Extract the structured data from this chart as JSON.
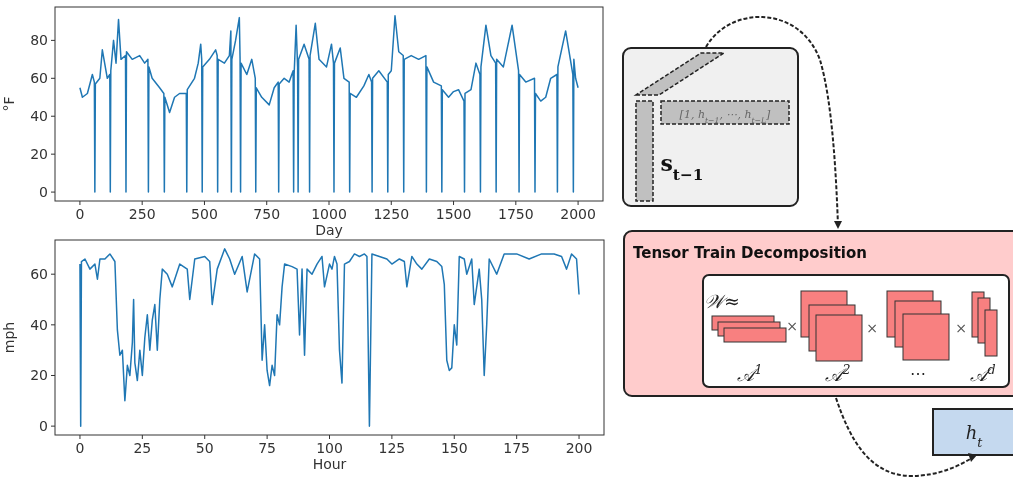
{
  "chart_data": [
    {
      "type": "line",
      "xlabel": "Day",
      "ylabel": "°F",
      "color": "#1f77b4",
      "xlim": [
        -100,
        2100
      ],
      "ylim": [
        -4.7,
        97.6
      ],
      "xticks": [
        0,
        250,
        500,
        750,
        1000,
        1250,
        1500,
        1750,
        2000
      ],
      "yticks": [
        0,
        20,
        40,
        60,
        80
      ],
      "x": [
        0,
        10,
        30,
        50,
        58,
        60,
        62,
        80,
        90,
        110,
        120,
        122,
        124,
        135,
        145,
        155,
        165,
        183,
        185,
        187,
        210,
        240,
        260,
        273,
        275,
        277,
        290,
        320,
        337,
        339,
        341,
        360,
        380,
        400,
        427,
        429,
        431,
        460,
        475,
        485,
        489,
        491,
        493,
        520,
        545,
        551,
        553,
        555,
        580,
        600,
        606,
        608,
        610,
        625,
        640,
        643,
        645,
        647,
        670,
        690,
        704,
        706,
        708,
        730,
        760,
        780,
        796,
        798,
        800,
        820,
        840,
        856,
        858,
        860,
        868,
        874,
        876,
        878,
        900,
        920,
        922,
        924,
        945,
        960,
        990,
        1010,
        1018,
        1020,
        1022,
        1045,
        1060,
        1081,
        1083,
        1085,
        1110,
        1140,
        1160,
        1171,
        1173,
        1175,
        1200,
        1234,
        1236,
        1238,
        1250,
        1265,
        1280,
        1298,
        1300,
        1302,
        1330,
        1360,
        1389,
        1391,
        1393,
        1420,
        1451,
        1453,
        1455,
        1480,
        1500,
        1520,
        1542,
        1544,
        1546,
        1570,
        1590,
        1606,
        1608,
        1610,
        1630,
        1650,
        1669,
        1671,
        1673,
        1700,
        1735,
        1761,
        1763,
        1765,
        1790,
        1825,
        1827,
        1829,
        1850,
        1870,
        1890,
        1915,
        1917,
        1919,
        1950,
        1979,
        1981,
        1983,
        1990,
        2000
      ],
      "values": [
        55,
        50,
        52,
        62,
        58,
        0,
        57,
        60,
        75,
        60,
        62,
        0,
        64,
        80,
        68,
        91,
        70,
        72,
        0,
        74,
        70,
        72,
        68,
        70,
        0,
        66,
        60,
        55,
        52,
        0,
        50,
        42,
        50,
        52,
        52,
        0,
        54,
        60,
        68,
        78,
        70,
        0,
        66,
        70,
        75,
        72,
        0,
        70,
        68,
        72,
        85,
        0,
        70,
        80,
        92,
        70,
        0,
        68,
        62,
        70,
        60,
        0,
        55,
        50,
        46,
        55,
        58,
        0,
        57,
        60,
        58,
        64,
        0,
        62,
        88,
        66,
        0,
        70,
        78,
        70,
        0,
        72,
        89,
        70,
        66,
        78,
        68,
        0,
        68,
        76,
        60,
        58,
        0,
        52,
        50,
        56,
        62,
        58,
        0,
        60,
        64,
        58,
        0,
        62,
        64,
        93,
        74,
        72,
        0,
        70,
        72,
        70,
        72,
        0,
        66,
        58,
        56,
        0,
        54,
        50,
        53,
        54,
        48,
        0,
        52,
        54,
        68,
        62,
        0,
        66,
        88,
        72,
        68,
        0,
        70,
        66,
        88,
        64,
        0,
        62,
        58,
        60,
        0,
        52,
        48,
        50,
        60,
        62,
        0,
        66,
        85,
        62,
        0,
        70,
        60,
        55
      ]
    },
    {
      "type": "line",
      "xlabel": "Hour",
      "ylabel": "mph",
      "color": "#1f77b4",
      "xlim": [
        -10,
        210
      ],
      "ylim": [
        -3.5,
        73.5
      ],
      "xticks": [
        0,
        25,
        50,
        75,
        100,
        125,
        150,
        175,
        200
      ],
      "yticks": [
        0,
        20,
        40,
        60
      ],
      "x": [
        0,
        0.3,
        0.6,
        2,
        4,
        6,
        7,
        8,
        10,
        12,
        14,
        15,
        16,
        17,
        18,
        19,
        20,
        21,
        21.5,
        22,
        23,
        24,
        25,
        26,
        27,
        28,
        29,
        30,
        31,
        32,
        33,
        35,
        37,
        40,
        43,
        44,
        46,
        50,
        52,
        53,
        55,
        58,
        60,
        62,
        65,
        67,
        70,
        72,
        73,
        74,
        75,
        76,
        77,
        78,
        79,
        80,
        81,
        82,
        85,
        87,
        88,
        89,
        90,
        91,
        93,
        95,
        97,
        98,
        100,
        101,
        102,
        103,
        104,
        105,
        106,
        108,
        110,
        112,
        114,
        115,
        116,
        117,
        120,
        123,
        125,
        128,
        130,
        131,
        133,
        135,
        137,
        140,
        143,
        145,
        146,
        147,
        148,
        149,
        150,
        151,
        152,
        154,
        155,
        157,
        158,
        160,
        161,
        162,
        163,
        164,
        167,
        170,
        175,
        180,
        185,
        190,
        193,
        195,
        197,
        199,
        200
      ],
      "values": [
        64,
        0,
        65,
        66,
        62,
        64,
        58,
        66,
        66,
        68,
        65,
        38,
        28,
        30,
        10,
        24,
        20,
        33,
        50,
        25,
        18,
        30,
        20,
        35,
        44,
        30,
        42,
        48,
        30,
        50,
        62,
        60,
        55,
        64,
        62,
        50,
        66,
        67,
        65,
        48,
        62,
        70,
        66,
        60,
        67,
        53,
        68,
        66,
        26,
        40,
        22,
        16,
        24,
        20,
        44,
        40,
        55,
        64,
        63,
        62,
        36,
        62,
        28,
        62,
        60,
        64,
        67,
        55,
        64,
        62,
        67,
        64,
        30,
        17,
        64,
        65,
        68,
        67,
        68,
        67,
        0,
        68,
        67,
        66,
        64,
        66,
        65,
        55,
        67,
        64,
        62,
        66,
        65,
        63,
        56,
        26,
        22,
        23,
        40,
        32,
        67,
        66,
        60,
        66,
        48,
        62,
        50,
        20,
        40,
        66,
        60,
        68,
        68,
        66,
        68,
        68,
        67,
        62,
        68,
        66,
        52
      ]
    },
    {
      "type": "other",
      "title": "Tensor Train Decomposition",
      "annotations": [
        "[1, h$_{t−1}$, ⋯, h$_{t−L}$]",
        "s$_{t−1}$",
        "𝒲≈",
        "×",
        "×",
        "×",
        "𝒜$^{1}$",
        "𝒜$^{2}$",
        "⋯",
        "𝒜$^{d}$",
        "h$_{t}$"
      ]
    }
  ]
}
